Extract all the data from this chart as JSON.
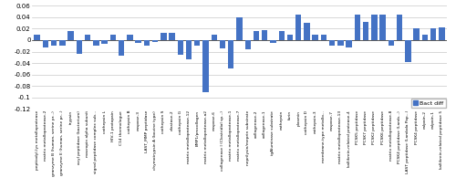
{
  "categories": [
    "peptiodyl-lys metalloprotease",
    "matrix metalloprotease-2",
    "granzyme B (human, serine pr...)",
    "granzyme E (human, serine pr...)",
    "trypsin",
    "acyl peptidase (bacterium)",
    "macropin alpha subunit",
    "signal peptidase complex sub...",
    "cathepsin L",
    "HIV-1 protopain",
    "C14 thermologue",
    "cathepsin B",
    "caspase-3",
    "LAST_MMP peptidase",
    "chymotrypsin A (bovine type)",
    "cathepsin S",
    "elastase-2",
    "cathepsin G",
    "matrix metalloprotease-12",
    "BMP1/procollagen",
    "matrix metalloprotease-a2",
    "caspase-6",
    "collagenase I (Clostridial sp...)",
    "matrix metalloprotease-1",
    "matrix metalloprotease-7",
    "neprilysin/meprin substrate",
    "collagenase-2",
    "collagenase-1",
    "igAluminase substrate",
    "cathepsin",
    "furin",
    "plasmin",
    "cathepsin D",
    "cathepsin-3",
    "membrane-type metallo...",
    "caspase-7",
    "matrix metalloprotease-13",
    "kallikrein-related protease-4",
    "PCSK5 peptidase",
    "PCSK7 peptidase",
    "PCSK2 peptidase",
    "PCSK6 peptidase",
    "matrix metalloprotease-8",
    "PCSK4 peptidase (Lamb...)",
    "LAST peptidase (Lambda Pap...)",
    "PCSK4 peptidase",
    "calpain-2",
    "calpain-1",
    "kallikrein-related peptidase 5"
  ],
  "values": [
    0.01,
    -0.012,
    -0.01,
    -0.01,
    0.016,
    -0.024,
    0.01,
    -0.01,
    -0.006,
    0.01,
    -0.027,
    0.01,
    -0.005,
    -0.01,
    -0.003,
    0.012,
    0.012,
    -0.025,
    -0.034,
    -0.01,
    -0.09,
    0.01,
    -0.015,
    -0.05,
    0.04,
    -0.016,
    0.016,
    0.018,
    -0.005,
    0.016,
    0.01,
    0.045,
    0.03,
    0.01,
    0.01,
    -0.01,
    -0.01,
    -0.013,
    0.045,
    0.032,
    0.045,
    0.045,
    -0.01,
    0.045,
    -0.038,
    0.02,
    0.01,
    0.02,
    0.022
  ],
  "bar_color": "#4472C4",
  "ylim": [
    -0.12,
    0.06
  ],
  "yticks": [
    -0.12,
    -0.1,
    -0.08,
    -0.06,
    -0.04,
    -0.02,
    0.0,
    0.02,
    0.04,
    0.06
  ],
  "ytick_labels": [
    "-0.12",
    "-0.1",
    "-0.08",
    "-0.06",
    "-0.04",
    "-0.02",
    "0",
    "0.02",
    "0.04",
    "0.06"
  ],
  "legend_label": "Bact diff",
  "background_color": "#ffffff",
  "grid_color": "#c8c8c8",
  "xlabel_fontsize": 3.2,
  "ylabel_fontsize": 5.0
}
